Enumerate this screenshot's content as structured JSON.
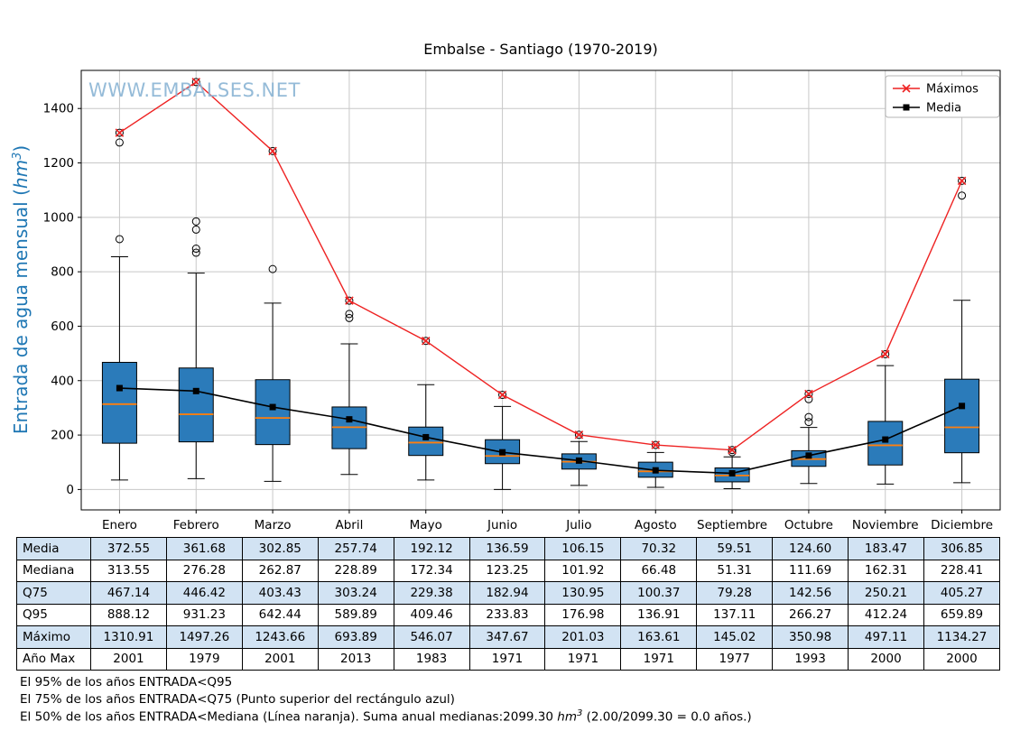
{
  "title": "Embalse - Santiago (1970-2019)",
  "watermark": "WWW.EMBALSES.NET",
  "ylabel": {
    "pre": "Entrada de agua mensual (",
    "unit": "hm",
    "sup": "3",
    "post": ")"
  },
  "legend": {
    "maximos": "Máximos",
    "media": "Media"
  },
  "chart_data": {
    "type": "boxplot",
    "title": "Embalse - Santiago (1970-2019)",
    "xlabel": "",
    "ylabel": "Entrada de agua mensual (hm3)",
    "categories": [
      "Enero",
      "Febrero",
      "Marzo",
      "Abril",
      "Mayo",
      "Junio",
      "Julio",
      "Agosto",
      "Septiembre",
      "Octubre",
      "Noviembre",
      "Diciembre"
    ],
    "yticks": [
      0,
      200,
      400,
      600,
      800,
      1000,
      1200,
      1400
    ],
    "ylim": [
      -75,
      1540
    ],
    "grid": true,
    "legend_position": "upper right",
    "colors": {
      "box_fill": "#2b7bba",
      "box_edge": "#000000",
      "median": "#ff7f0e",
      "maximos": "#ee2222",
      "media": "#000000",
      "grid": "#c8c8c8",
      "watermark": "#8ab4d4",
      "ylabel_color": "#1f77b4",
      "table_shade": "#d2e3f3"
    },
    "series": [
      {
        "name": "Máximos",
        "values": [
          1310.91,
          1497.26,
          1243.66,
          693.89,
          546.07,
          347.67,
          201.03,
          163.61,
          145.02,
          350.98,
          497.11,
          1134.27
        ]
      },
      {
        "name": "Media",
        "values": [
          372.55,
          361.68,
          302.85,
          257.74,
          192.12,
          136.59,
          106.15,
          70.32,
          59.51,
          124.6,
          183.47,
          306.85
        ]
      }
    ],
    "boxes": [
      {
        "q1": 170,
        "median": 313.55,
        "q3": 467.14,
        "lo": 35,
        "hi": 855,
        "outliers": [
          920,
          1275,
          1310.91
        ]
      },
      {
        "q1": 175,
        "median": 276.28,
        "q3": 446.42,
        "lo": 40,
        "hi": 795,
        "outliers": [
          870,
          885,
          955,
          985,
          1497.26
        ]
      },
      {
        "q1": 165,
        "median": 262.87,
        "q3": 403.43,
        "lo": 30,
        "hi": 685,
        "outliers": [
          810,
          1243.66
        ]
      },
      {
        "q1": 150,
        "median": 228.89,
        "q3": 303.24,
        "lo": 55,
        "hi": 535,
        "outliers": [
          630,
          645,
          693.89
        ]
      },
      {
        "q1": 125,
        "median": 172.34,
        "q3": 229.38,
        "lo": 35,
        "hi": 385,
        "outliers": [
          546.07
        ]
      },
      {
        "q1": 95,
        "median": 123.25,
        "q3": 182.94,
        "lo": 0,
        "hi": 305,
        "outliers": [
          347.67
        ]
      },
      {
        "q1": 75,
        "median": 101.92,
        "q3": 130.95,
        "lo": 15,
        "hi": 176,
        "outliers": [
          201.03
        ]
      },
      {
        "q1": 45,
        "median": 66.48,
        "q3": 100.37,
        "lo": 8,
        "hi": 136,
        "outliers": [
          163.61
        ]
      },
      {
        "q1": 28,
        "median": 51.31,
        "q3": 79.28,
        "lo": 3,
        "hi": 120,
        "outliers": [
          137.11,
          145.02
        ]
      },
      {
        "q1": 85,
        "median": 111.69,
        "q3": 142.56,
        "lo": 22,
        "hi": 228,
        "outliers": [
          248,
          266.27,
          332,
          350.98
        ]
      },
      {
        "q1": 90,
        "median": 162.31,
        "q3": 250.21,
        "lo": 20,
        "hi": 455,
        "outliers": [
          497.11
        ]
      },
      {
        "q1": 135,
        "median": 228.41,
        "q3": 405.27,
        "lo": 25,
        "hi": 695,
        "outliers": [
          1080,
          1134.27
        ]
      }
    ]
  },
  "table": {
    "rows": [
      {
        "label": "Media",
        "values": [
          "372.55",
          "361.68",
          "302.85",
          "257.74",
          "192.12",
          "136.59",
          "106.15",
          "70.32",
          "59.51",
          "124.60",
          "183.47",
          "306.85"
        ]
      },
      {
        "label": "Mediana",
        "values": [
          "313.55",
          "276.28",
          "262.87",
          "228.89",
          "172.34",
          "123.25",
          "101.92",
          "66.48",
          "51.31",
          "111.69",
          "162.31",
          "228.41"
        ]
      },
      {
        "label": "Q75",
        "values": [
          "467.14",
          "446.42",
          "403.43",
          "303.24",
          "229.38",
          "182.94",
          "130.95",
          "100.37",
          "79.28",
          "142.56",
          "250.21",
          "405.27"
        ]
      },
      {
        "label": "Q95",
        "values": [
          "888.12",
          "931.23",
          "642.44",
          "589.89",
          "409.46",
          "233.83",
          "176.98",
          "136.91",
          "137.11",
          "266.27",
          "412.24",
          "659.89"
        ]
      },
      {
        "label": "Máximo",
        "values": [
          "1310.91",
          "1497.26",
          "1243.66",
          "693.89",
          "546.07",
          "347.67",
          "201.03",
          "163.61",
          "145.02",
          "350.98",
          "497.11",
          "1134.27"
        ]
      },
      {
        "label": "Año Max",
        "values": [
          "2001",
          "1979",
          "2001",
          "2013",
          "1983",
          "1971",
          "1971",
          "1971",
          "1977",
          "1993",
          "2000",
          "2000"
        ]
      }
    ]
  },
  "notes": {
    "line1": "El 95% de los años ENTRADA<Q95",
    "line2": "El 75% de los años ENTRADA<Q75 (Punto superior del rectángulo azul)",
    "line3_pre": "El 50% de los años ENTRADA<Mediana (Línea naranja). Suma anual medianas:2099.30 ",
    "line3_unit": "hm",
    "line3_sup": "3",
    "line3_post": " (2.00/2099.30 = 0.0 años.)"
  }
}
